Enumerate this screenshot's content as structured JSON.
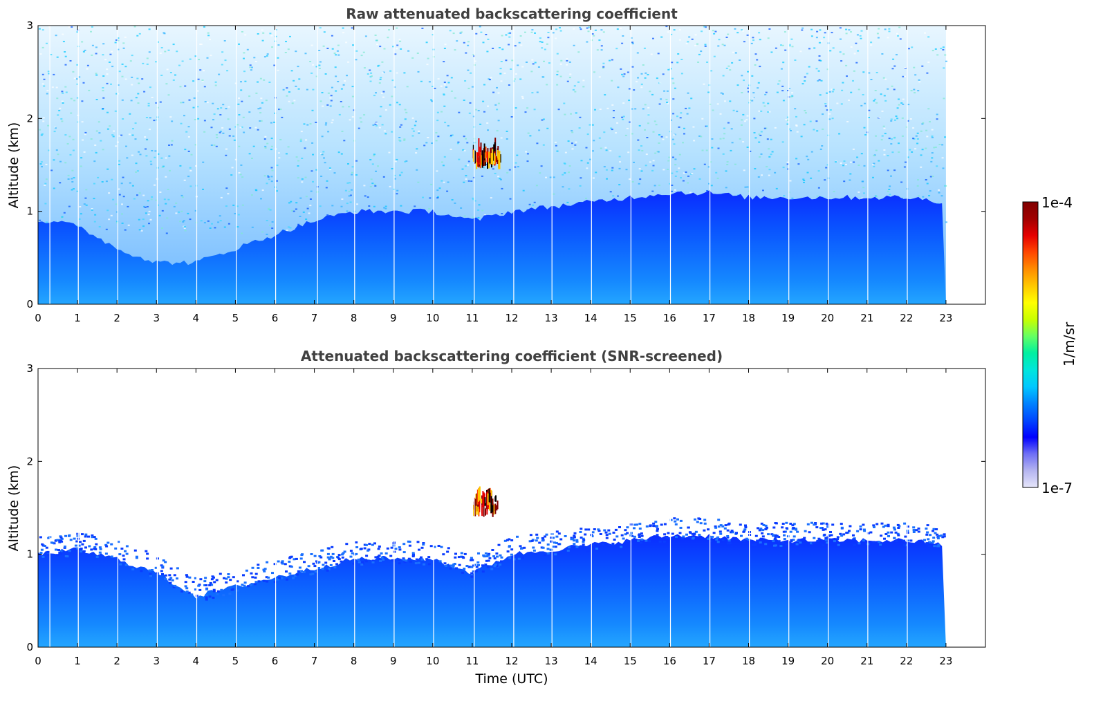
{
  "chart_data": [
    {
      "type": "heatmap",
      "title": "Raw attenuated backscattering coefficient",
      "xlabel": "",
      "ylabel": "Altitude (km)",
      "x_ticks": [
        "0",
        "1",
        "2",
        "3",
        "4",
        "5",
        "6",
        "7",
        "8",
        "9",
        "10",
        "11",
        "12",
        "13",
        "14",
        "15",
        "16",
        "17",
        "18",
        "19",
        "20",
        "21",
        "22",
        "23"
      ],
      "y_ticks": [
        "0",
        "1",
        "2",
        "3"
      ],
      "xlim": [
        0,
        24
      ],
      "ylim": [
        0,
        3
      ],
      "data_end_hour": 23,
      "boundary_layer_top_km": [
        [
          0,
          0.9
        ],
        [
          1,
          0.85
        ],
        [
          2,
          0.6
        ],
        [
          3,
          0.45
        ],
        [
          4,
          0.45
        ],
        [
          5,
          0.6
        ],
        [
          6,
          0.75
        ],
        [
          7,
          0.9
        ],
        [
          8,
          1.0
        ],
        [
          9,
          1.0
        ],
        [
          10,
          1.0
        ],
        [
          11,
          0.9
        ],
        [
          12,
          1.0
        ],
        [
          13,
          1.05
        ],
        [
          14,
          1.1
        ],
        [
          15,
          1.15
        ],
        [
          16,
          1.2
        ],
        [
          17,
          1.2
        ],
        [
          18,
          1.15
        ],
        [
          19,
          1.15
        ],
        [
          20,
          1.15
        ],
        [
          21,
          1.15
        ],
        [
          22,
          1.15
        ],
        [
          23,
          1.1
        ]
      ],
      "features": [
        {
          "note": "strong backscatter patch",
          "hour_range": [
            11.0,
            11.7
          ],
          "alt_range_km": [
            1.45,
            1.7
          ]
        }
      ]
    },
    {
      "type": "heatmap",
      "title": "Attenuated backscattering coefficient (SNR-screened)",
      "xlabel": "Time (UTC)",
      "ylabel": "Altitude (km)",
      "x_ticks": [
        "0",
        "1",
        "2",
        "3",
        "4",
        "5",
        "6",
        "7",
        "8",
        "9",
        "10",
        "11",
        "12",
        "13",
        "14",
        "15",
        "16",
        "17",
        "18",
        "19",
        "20",
        "21",
        "22",
        "23"
      ],
      "y_ticks": [
        "0",
        "1",
        "2",
        "3"
      ],
      "xlim": [
        0,
        24
      ],
      "ylim": [
        0,
        3
      ],
      "data_end_hour": 23,
      "screened_top_km": [
        [
          0,
          1.0
        ],
        [
          1,
          1.05
        ],
        [
          2,
          0.95
        ],
        [
          3,
          0.8
        ],
        [
          4,
          0.55
        ],
        [
          5,
          0.65
        ],
        [
          6,
          0.75
        ],
        [
          7,
          0.85
        ],
        [
          8,
          0.95
        ],
        [
          9,
          0.95
        ],
        [
          10,
          0.95
        ],
        [
          11,
          0.8
        ],
        [
          12,
          1.0
        ],
        [
          13,
          1.05
        ],
        [
          14,
          1.1
        ],
        [
          15,
          1.15
        ],
        [
          16,
          1.2
        ],
        [
          17,
          1.2
        ],
        [
          18,
          1.15
        ],
        [
          19,
          1.15
        ],
        [
          20,
          1.15
        ],
        [
          21,
          1.15
        ],
        [
          22,
          1.15
        ],
        [
          23,
          1.1
        ]
      ],
      "features": [
        {
          "note": "strong backscatter patch",
          "hour_range": [
            11.0,
            11.7
          ],
          "alt_range_km": [
            1.4,
            1.7
          ]
        }
      ]
    }
  ],
  "colorbar": {
    "label": "1/m/sr",
    "max_label": "1e-4",
    "min_label": "1e-7",
    "colors": [
      "#e6e6fa",
      "#b4b4f0",
      "#6e6ef5",
      "#0000ff",
      "#0046ff",
      "#0082ff",
      "#00c8ff",
      "#00e6dc",
      "#00f0a0",
      "#64ff64",
      "#c8ff00",
      "#ffff00",
      "#ffc800",
      "#ff8c00",
      "#ff4600",
      "#e60000",
      "#a00000",
      "#800000"
    ]
  }
}
